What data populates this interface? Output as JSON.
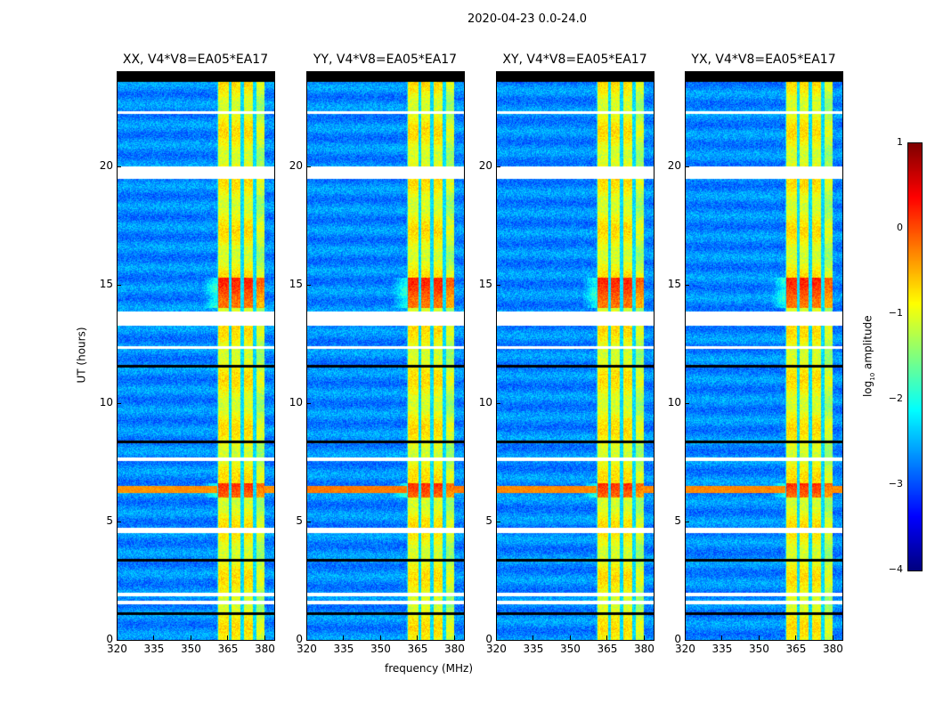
{
  "chart_data": {
    "type": "heatmap",
    "title": "2020-04-23 0.0-24.0",
    "xlabel": "frequency (MHz)",
    "ylabel": "UT (hours)",
    "xlim": [
      320,
      384
    ],
    "ylim": [
      0,
      24
    ],
    "xticks": [
      320,
      335,
      350,
      365,
      380
    ],
    "yticks": [
      0,
      5,
      10,
      15,
      20
    ],
    "panels": [
      {
        "title": "XX, V4*V8=EA05*EA17",
        "rfi_strength": 0.2
      },
      {
        "title": "YY, V4*V8=EA05*EA17",
        "rfi_strength": 0.6
      },
      {
        "title": "XY, V4*V8=EA05*EA17",
        "rfi_strength": 0.35
      },
      {
        "title": "YX, V4*V8=EA05*EA17",
        "rfi_strength": 0.35
      }
    ],
    "colorbar": {
      "label": "log10 amplitude",
      "label_main": "log",
      "label_sub": "10",
      "label_rest": " amplitude",
      "range": [
        -4,
        1
      ],
      "ticks": [
        "1",
        "0",
        "−1",
        "−2",
        "−3",
        "−4"
      ],
      "colormap": "jet"
    },
    "background_level": -2.7,
    "bright_band_mhz": [
      361,
      380
    ],
    "band_gap_channels_mhz": [
      366,
      371,
      376
    ],
    "flagged_hours": [
      [
        19.45,
        20.0
      ],
      [
        13.25,
        13.85
      ],
      [
        4.5,
        4.72
      ],
      [
        7.55,
        7.7
      ],
      [
        1.5,
        1.65
      ],
      [
        1.85,
        2.0
      ],
      [
        12.3,
        12.4
      ],
      [
        22.2,
        22.3
      ]
    ],
    "dark_hours": [
      [
        23.55,
        24.0
      ],
      [
        1.05,
        1.15
      ],
      [
        3.3,
        3.4
      ],
      [
        11.5,
        11.6
      ],
      [
        8.3,
        8.4
      ]
    ],
    "bright_hours": [
      [
        14.0,
        15.3
      ],
      [
        6.0,
        6.6
      ]
    ],
    "rfi_hours": [
      6.2,
      6.5
    ]
  }
}
